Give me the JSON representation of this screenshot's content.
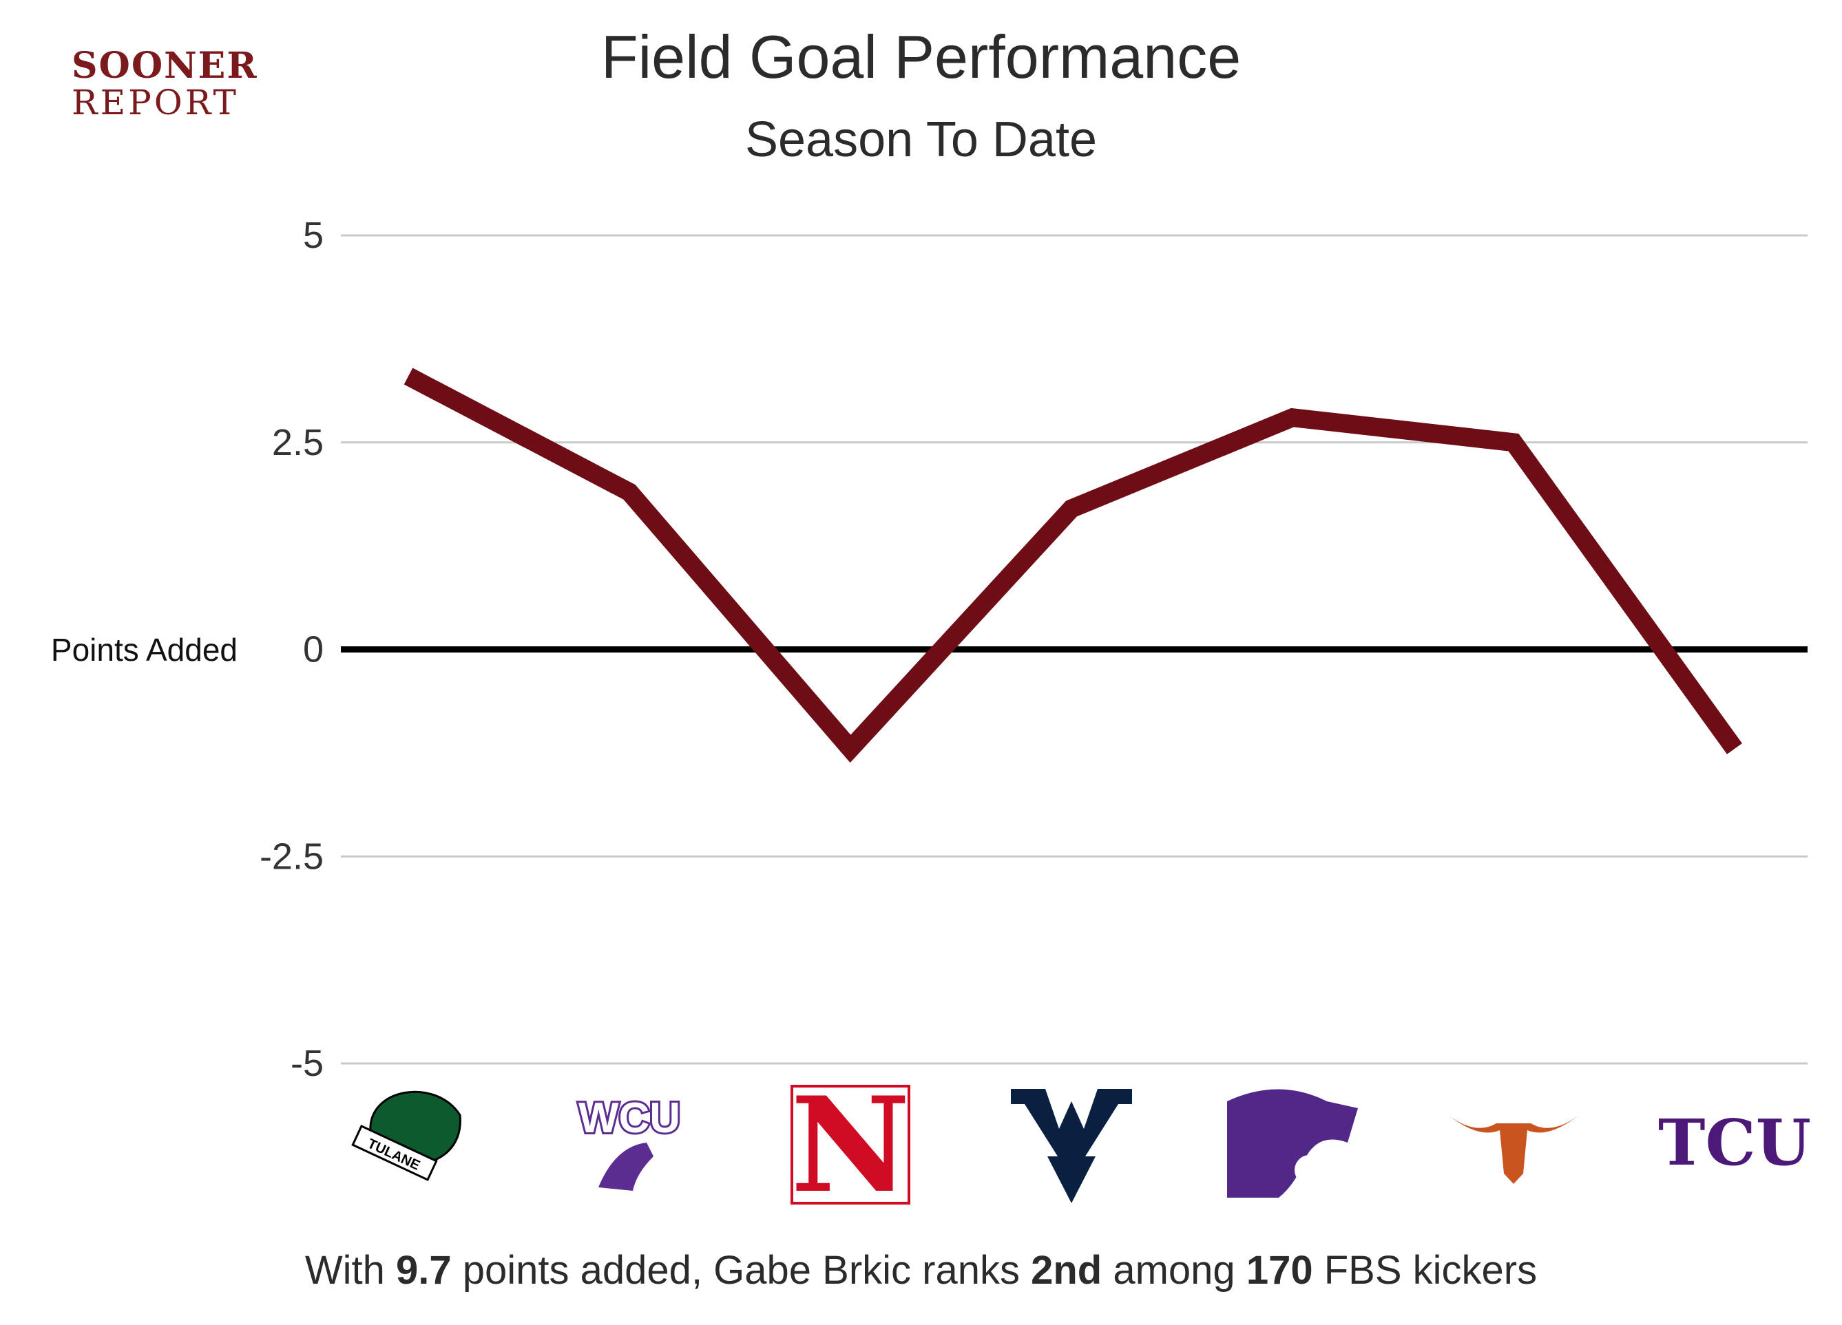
{
  "logo": {
    "line1": "SOONER",
    "line2": "REPORT"
  },
  "colors": {
    "line": "#6e0d15",
    "zero": "#000000",
    "grid": "#c8c8c8",
    "text": "#2b2b2b",
    "brand": "#7a1a1c"
  },
  "chart_data": {
    "type": "line",
    "title": "Field Goal Performance",
    "subtitle": "Season To Date",
    "ylabel": "Points Added",
    "ylim": [
      -5,
      5
    ],
    "yticks": [
      "5",
      "2.5",
      "0",
      "-2.5",
      "-5"
    ],
    "categories": [
      "Tulane",
      "WCU",
      "Nebraska",
      "West Virginia",
      "Kansas State",
      "Texas",
      "TCU"
    ],
    "series": [
      {
        "values": [
          3.3,
          1.9,
          -1.2,
          1.7,
          2.8,
          2.5,
          -1.2
        ]
      }
    ],
    "x_axis": "team-logos",
    "grid": true,
    "zero_line": true
  },
  "opponents": [
    {
      "name": "Tulane",
      "icon": "tulane-logo-icon",
      "abbr": "TULANE",
      "color": "#0d5a2e"
    },
    {
      "name": "WCU",
      "icon": "wcu-logo-icon",
      "abbr": "WCU",
      "color": "#5b2d90"
    },
    {
      "name": "Nebraska",
      "icon": "nebraska-logo-icon",
      "abbr": "N",
      "color": "#d00c25"
    },
    {
      "name": "West Virginia",
      "icon": "west-virginia-logo-icon",
      "abbr": "WV",
      "color": "#0a2041"
    },
    {
      "name": "Kansas State",
      "icon": "kansas-state-logo-icon",
      "abbr": "",
      "color": "#512888"
    },
    {
      "name": "Texas",
      "icon": "texas-longhorn-logo-icon",
      "abbr": "",
      "color": "#c9541f"
    },
    {
      "name": "TCU",
      "icon": "tcu-logo-icon",
      "abbr": "TCU",
      "color": "#4d1979"
    }
  ],
  "caption": {
    "p1": "With ",
    "points": "9.7",
    "p2": " points added, Gabe Brkic ranks ",
    "rank": "2nd",
    "p3": " among ",
    "count": "170",
    "p4": " FBS kickers"
  }
}
